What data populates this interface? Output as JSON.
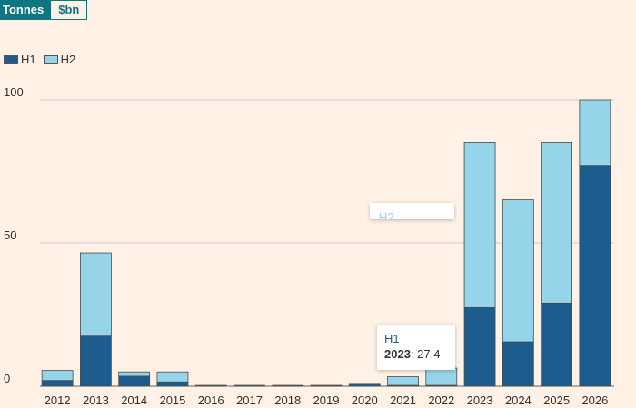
{
  "toggle": {
    "tonnes_label": "Tonnes",
    "usd_label": "$bn"
  },
  "colors": {
    "h1": "#1d5c8e",
    "h2": "#96d4e9",
    "accent": "#0d7680",
    "background": "#fff1e5"
  },
  "chart_data": {
    "type": "bar",
    "stacked": true,
    "title": "",
    "xlabel": "",
    "ylabel": "",
    "categories": [
      "2012",
      "2013",
      "2014",
      "2015",
      "2016",
      "2017",
      "2018",
      "2019",
      "2020",
      "2021",
      "2022",
      "2023",
      "2024",
      "2025",
      "2026"
    ],
    "series": [
      {
        "name": "H1",
        "values": [
          2,
          17.5,
          3.5,
          1.5,
          0.3,
          0.3,
          0.3,
          0.3,
          1,
          0.3,
          0.3,
          27.4,
          15.5,
          29,
          77
        ]
      },
      {
        "name": "H2",
        "values": [
          3.5,
          29,
          1.5,
          3.5,
          0,
          0,
          0,
          0,
          0,
          3,
          6,
          57.6,
          49.5,
          56,
          23
        ]
      }
    ],
    "ylim": [
      0,
      100
    ],
    "yticks": [
      0,
      50,
      100
    ],
    "grid": true,
    "legend": "top-left"
  },
  "tooltip": {
    "series": "H1",
    "category": "2023",
    "value": "27.4",
    "ghost_series": "H2"
  }
}
